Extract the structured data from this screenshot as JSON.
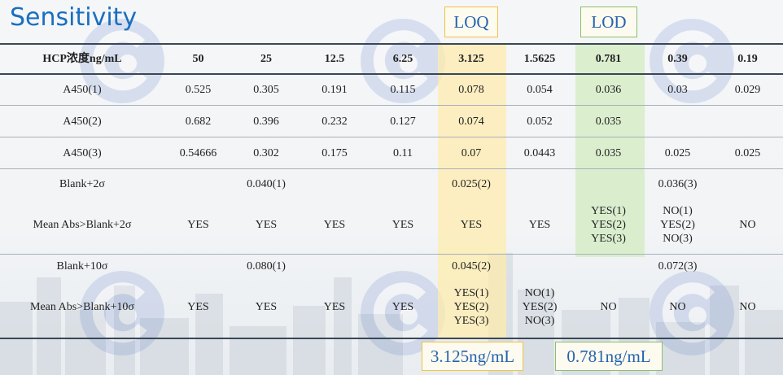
{
  "title": "Sensitivity",
  "callouts": {
    "loq_label": "LOQ",
    "lod_label": "LOD",
    "loq_value": "3.125ng/mL",
    "lod_value": "0.781ng/mL"
  },
  "colors": {
    "title": "#1a6fc0",
    "loq_highlight": "#ffecaa",
    "lod_highlight": "#d6ecc7",
    "loq_border": "#f0c341",
    "lod_border": "#8bbf6a",
    "callout_text": "#2563ad"
  },
  "table": {
    "header": {
      "label": "HCP浓度ng/mL",
      "columns": [
        "50",
        "25",
        "12.5",
        "6.25",
        "3.125",
        "1.5625",
        "0.781",
        "0.39",
        "0.19"
      ]
    },
    "rows": [
      {
        "label": "A450(1)",
        "cells": [
          "0.525",
          "0.305",
          "0.191",
          "0.115",
          "0.078",
          "0.054",
          "0.036",
          "0.03",
          "0.029"
        ]
      },
      {
        "label": "A450(2)",
        "cells": [
          "0.682",
          "0.396",
          "0.232",
          "0.127",
          "0.074",
          "0.052",
          "0.035",
          "",
          ""
        ]
      },
      {
        "label": "A450(3)",
        "cells": [
          "0.54666",
          "0.302",
          "0.175",
          "0.11",
          "0.07",
          "0.0443",
          "0.035",
          "0.025",
          "0.025"
        ]
      },
      {
        "label": "Blank+2σ",
        "cells": [
          "",
          "0.040(1)",
          "",
          "",
          "0.025(2)",
          "",
          "",
          "0.036(3)",
          ""
        ]
      },
      {
        "label": "Mean Abs>Blank+2σ",
        "cells": [
          "YES",
          "YES",
          "YES",
          "YES",
          "YES",
          "YES",
          [
            "YES(1)",
            "YES(2)",
            "YES(3)"
          ],
          [
            "NO(1)",
            "YES(2)",
            "NO(3)"
          ],
          "NO"
        ]
      },
      {
        "label": "Blank+10σ",
        "cells": [
          "",
          "0.080(1)",
          "",
          "",
          "0.045(2)",
          "",
          "",
          "0.072(3)",
          ""
        ]
      },
      {
        "label": "Mean Abs>Blank+10σ",
        "cells": [
          "YES",
          "YES",
          "YES",
          "YES",
          [
            "YES(1)",
            "YES(2)",
            "YES(3)"
          ],
          [
            "NO(1)",
            "YES(2)",
            "NO(3)"
          ],
          "NO",
          "NO",
          "NO"
        ]
      }
    ]
  }
}
